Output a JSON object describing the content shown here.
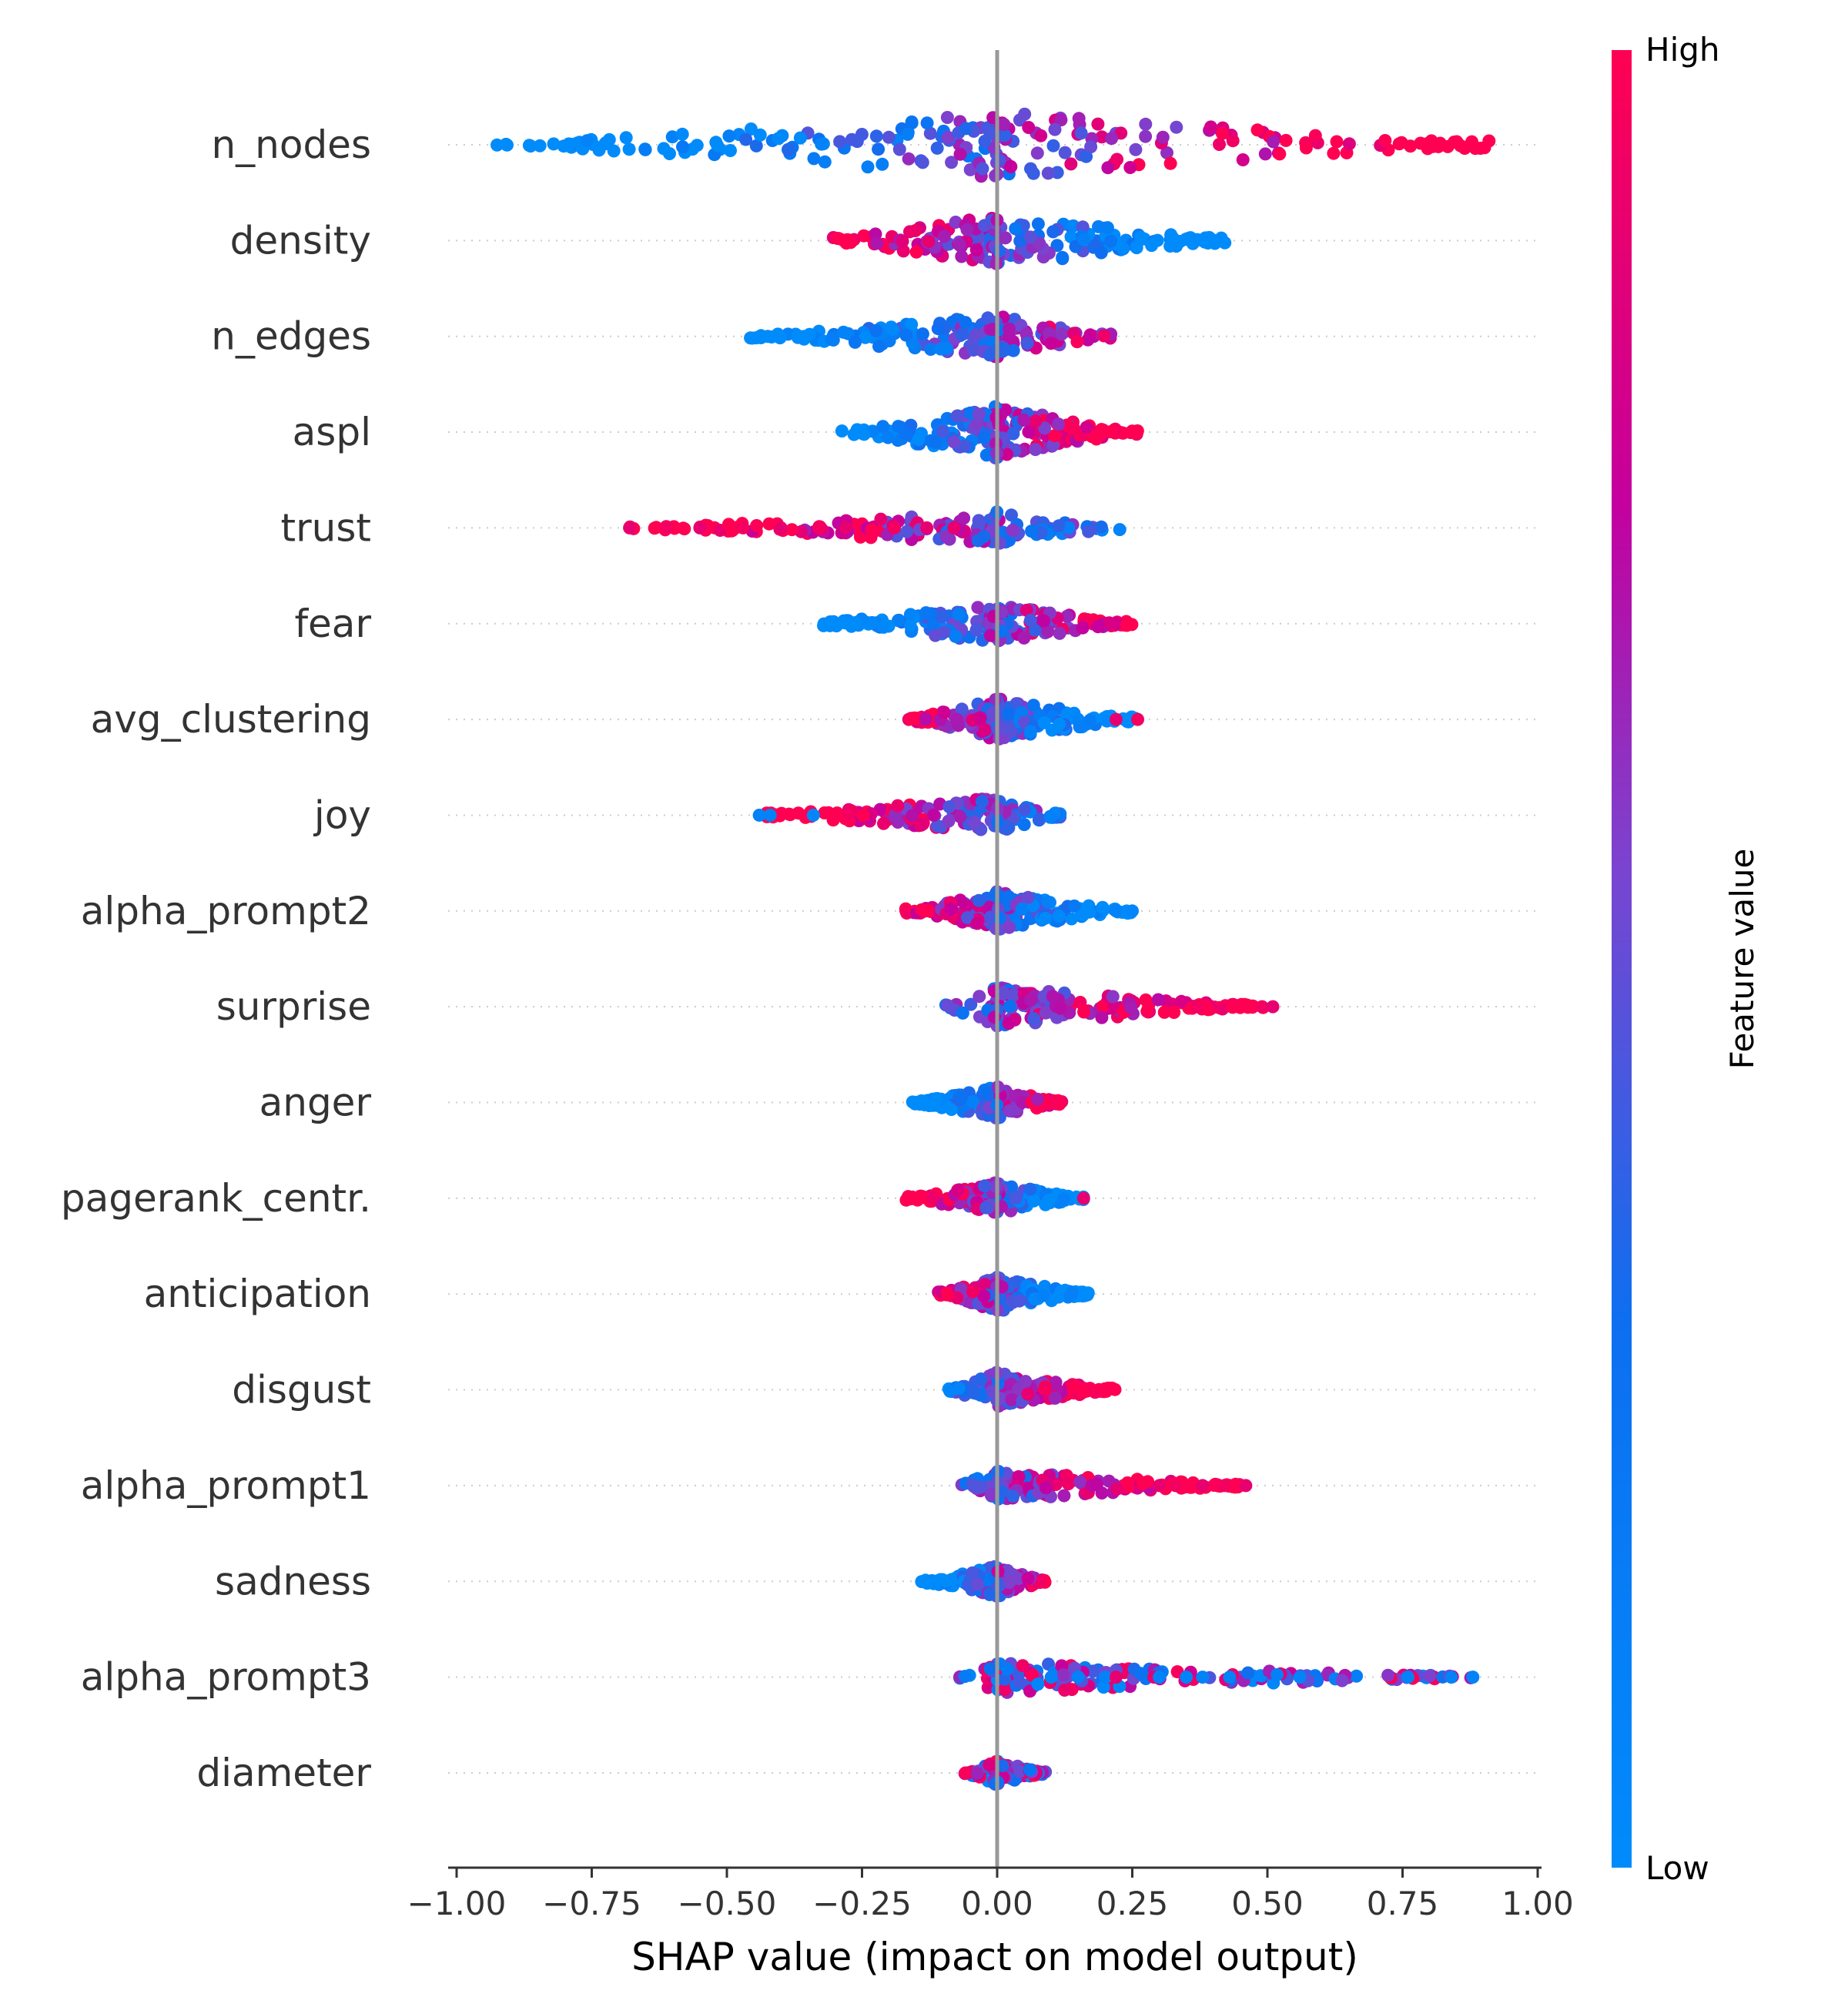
{
  "chart_data": {
    "type": "scatter",
    "subtype": "shap-beeswarm",
    "title": "",
    "xlabel": "SHAP value (impact on model output)",
    "xlim": [
      -1.02,
      1.02
    ],
    "x_ticks": [
      -1.0,
      -0.75,
      -0.5,
      -0.25,
      0.0,
      0.25,
      0.5,
      0.75,
      1.0
    ],
    "x_tick_labels": [
      "−1.00",
      "−0.75",
      "−0.50",
      "−0.25",
      "0.00",
      "0.25",
      "0.50",
      "0.75",
      "1.00"
    ],
    "zero_line": 0.0,
    "grid": false,
    "colorbar": {
      "title": "Feature value",
      "high_label": "High",
      "low_label": "Low",
      "low_color": "#008bfb",
      "high_color": "#ff0052"
    },
    "features": [
      {
        "name": "n_nodes",
        "xmin": -0.93,
        "xmax": 0.92,
        "spread": 0.95,
        "trend": 1,
        "extra": []
      },
      {
        "name": "density",
        "xmin": -0.31,
        "xmax": 0.43,
        "spread": 0.75,
        "trend": -1,
        "extra": []
      },
      {
        "name": "n_edges",
        "xmin": -0.46,
        "xmax": 0.22,
        "spread": 0.6,
        "trend": 1,
        "extra": []
      },
      {
        "name": "aspl",
        "xmin": -0.29,
        "xmax": 0.26,
        "spread": 0.75,
        "trend": 1,
        "extra": []
      },
      {
        "name": "trust",
        "xmin": -0.68,
        "xmax": 0.23,
        "spread": 0.45,
        "trend": -1,
        "extra": [
          [
            -0.68,
            0.9
          ],
          [
            -0.61,
            0.95
          ],
          [
            -0.55,
            0.9
          ],
          [
            -0.47,
            0.95
          ],
          [
            -0.4,
            0.9
          ],
          [
            -0.33,
            0.95
          ],
          [
            -0.28,
            0.9
          ],
          [
            -0.19,
            0.95
          ],
          [
            -0.13,
            0.9
          ],
          [
            -0.08,
            0.9
          ]
        ]
      },
      {
        "name": "fear",
        "xmin": -0.34,
        "xmax": 0.25,
        "spread": 0.55,
        "trend": 1,
        "extra": []
      },
      {
        "name": "avg_clustering",
        "xmin": -0.17,
        "xmax": 0.26,
        "spread": 0.6,
        "trend": -1,
        "extra": [
          [
            0.22,
            0.9
          ],
          [
            0.26,
            0.95
          ]
        ]
      },
      {
        "name": "joy",
        "xmin": -0.44,
        "xmax": 0.12,
        "spread": 0.5,
        "trend": -1,
        "extra": [
          [
            -0.44,
            0.1
          ],
          [
            -0.42,
            0.1
          ],
          [
            -0.34,
            0.05
          ]
        ]
      },
      {
        "name": "alpha_prompt2",
        "xmin": -0.17,
        "xmax": 0.25,
        "spread": 0.55,
        "trend": -1,
        "extra": [
          [
            0.22,
            0.1
          ],
          [
            0.25,
            0.05
          ]
        ]
      },
      {
        "name": "surprise",
        "xmin": -0.1,
        "xmax": 0.51,
        "spread": 0.55,
        "trend": 1,
        "extra": [
          [
            0.37,
            0.95
          ],
          [
            0.49,
            0.95
          ],
          [
            0.51,
            0.9
          ]
        ]
      },
      {
        "name": "anger",
        "xmin": -0.16,
        "xmax": 0.12,
        "spread": 0.45,
        "trend": 1,
        "extra": []
      },
      {
        "name": "pagerank_centr.",
        "xmin": -0.17,
        "xmax": 0.16,
        "spread": 0.45,
        "trend": -1,
        "extra": [
          [
            0.16,
            0.9
          ]
        ]
      },
      {
        "name": "anticipation",
        "xmin": -0.11,
        "xmax": 0.17,
        "spread": 0.5,
        "trend": -1,
        "extra": []
      },
      {
        "name": "disgust",
        "xmin": -0.09,
        "xmax": 0.22,
        "spread": 0.5,
        "trend": 1,
        "extra": []
      },
      {
        "name": "alpha_prompt1",
        "xmin": -0.07,
        "xmax": 0.46,
        "spread": 0.45,
        "trend": 1,
        "extra": [
          [
            0.3,
            0.9
          ],
          [
            0.33,
            0.95
          ],
          [
            0.38,
            0.9
          ],
          [
            0.42,
            0.95
          ],
          [
            0.46,
            0.9
          ]
        ]
      },
      {
        "name": "sadness",
        "xmin": -0.14,
        "xmax": 0.09,
        "spread": 0.45,
        "trend": 1,
        "extra": []
      },
      {
        "name": "alpha_prompt3",
        "xmin": -0.07,
        "xmax": 0.88,
        "spread": 0.45,
        "trend": 0,
        "extra": [
          [
            0.1,
            0.1
          ],
          [
            0.15,
            0.1
          ],
          [
            0.2,
            0.1
          ],
          [
            0.22,
            0.9
          ],
          [
            0.29,
            0.9
          ],
          [
            0.3,
            0.1
          ],
          [
            0.35,
            0.1
          ],
          [
            0.38,
            0.1
          ],
          [
            0.43,
            0.1
          ],
          [
            0.56,
            0.1
          ],
          [
            0.76,
            0.1
          ],
          [
            0.84,
            0.1
          ],
          [
            0.88,
            0.1
          ]
        ]
      },
      {
        "name": "diameter",
        "xmin": -0.06,
        "xmax": 0.09,
        "spread": 0.35,
        "trend": 0,
        "extra": []
      }
    ]
  }
}
